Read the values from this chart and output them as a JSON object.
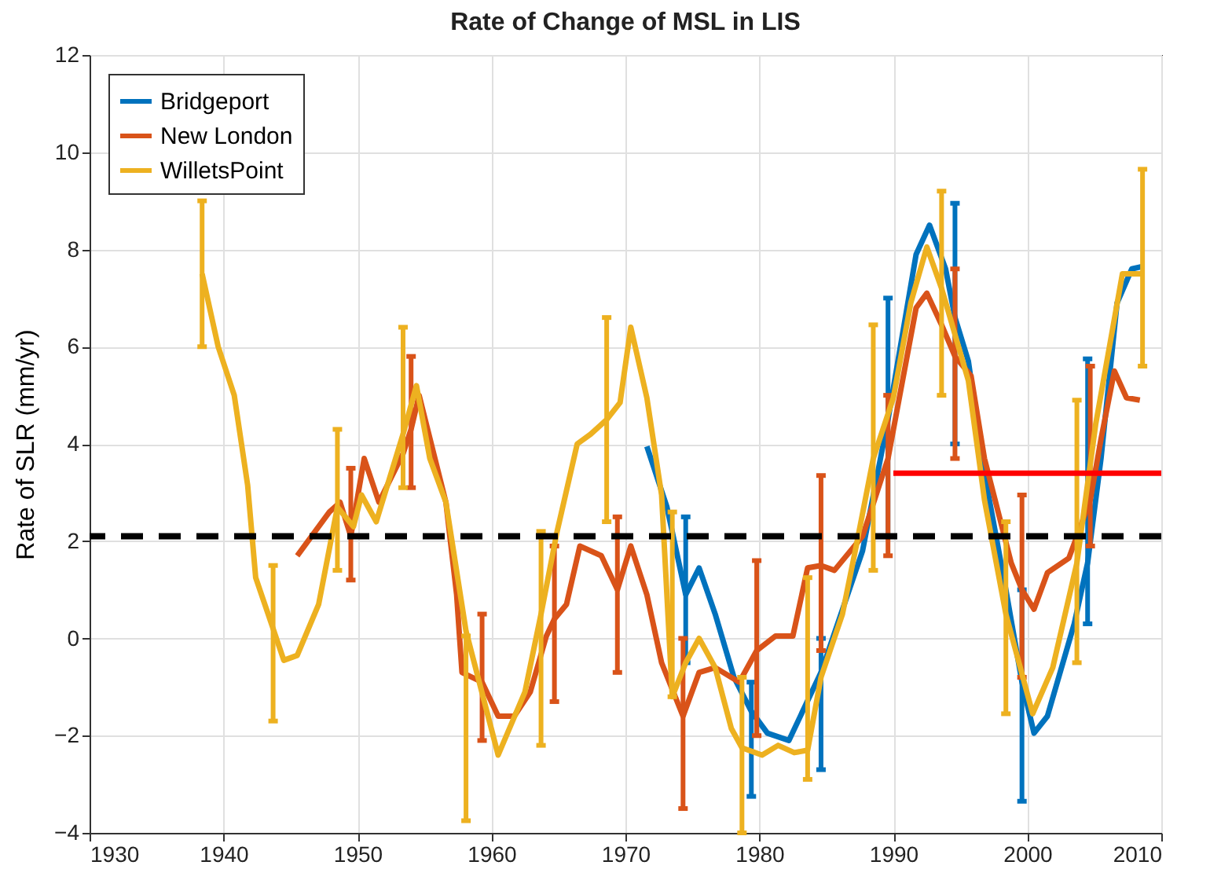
{
  "chart_data": {
    "type": "line",
    "title": "Rate of Change of MSL in LIS",
    "ylabel": "Rate of SLR (mm/yr)",
    "xlim": [
      1930,
      2010
    ],
    "xticks": [
      1930,
      1940,
      1950,
      1960,
      1970,
      1980,
      1990,
      2000,
      2010
    ],
    "ylim": [
      -4,
      12
    ],
    "yticks": [
      -4,
      -2,
      0,
      2,
      4,
      6,
      8,
      10,
      12
    ],
    "grid": true,
    "legend": "top left",
    "ref_lines": [
      {
        "axis": "y",
        "value": 2.1,
        "color": "#000000",
        "line_style": "dashed"
      }
    ],
    "series": [
      {
        "name": "Bridgeport",
        "color": "#0072bd",
        "x": [
          1971.6,
          1973.1,
          1974.5,
          1975.5,
          1976.7,
          1978.1,
          1979.4,
          1980.6,
          1982.2,
          1984.6,
          1987.7,
          1989.6,
          1991.7,
          1992.7,
          1993.9,
          1994.6,
          1995.6,
          1996.8,
          1998.4,
          1999.6,
          2000.5,
          2001.5,
          2003.5,
          2004.5,
          2005.5,
          2006.7,
          2007.8,
          2008.6
        ],
        "values": [
          3.95,
          2.7,
          0.9,
          1.45,
          0.5,
          -0.8,
          -1.5,
          -1.95,
          -2.1,
          -0.7,
          1.8,
          4.5,
          7.9,
          8.5,
          7.6,
          6.6,
          5.7,
          3.4,
          1.0,
          -0.9,
          -1.95,
          -1.6,
          0.3,
          1.55,
          3.7,
          6.9,
          7.6,
          7.65
        ],
        "errors": [
          null,
          null,
          [
            -0.5,
            2.5
          ],
          null,
          null,
          null,
          [
            -3.25,
            -0.9
          ],
          null,
          null,
          [
            -2.7,
            0.0
          ],
          null,
          [
            2.1,
            7.0
          ],
          null,
          null,
          null,
          [
            4.0,
            8.95
          ],
          null,
          null,
          null,
          [
            -3.35,
            1.0
          ],
          null,
          null,
          null,
          [
            0.3,
            5.75
          ],
          null,
          null,
          null,
          null
        ]
      },
      {
        "name": "New London",
        "color": "#d95319",
        "x": [
          1945.5,
          1947.9,
          1948.7,
          1949.5,
          1950.5,
          1951.6,
          1953.4,
          1954.0,
          1954.6,
          1956.6,
          1957.4,
          1957.8,
          1959.3,
          1960.5,
          1961.7,
          1962.9,
          1964.1,
          1964.7,
          1965.6,
          1966.6,
          1968.2,
          1969.4,
          1970.4,
          1971.6,
          1972.7,
          1974.3,
          1975.5,
          1976.7,
          1978.5,
          1979.8,
          1981.2,
          1982.5,
          1983.6,
          1984.6,
          1985.6,
          1987.7,
          1989.6,
          1991.7,
          1992.5,
          1993.6,
          1994.6,
          1995.8,
          1996.8,
          1998.8,
          1999.6,
          2000.5,
          2001.5,
          2003.1,
          2004.7,
          2005.5,
          2006.5,
          2007.4,
          2008.4
        ],
        "values": [
          1.7,
          2.6,
          2.8,
          2.1,
          3.7,
          2.8,
          3.8,
          4.3,
          5.0,
          2.8,
          0.9,
          -0.7,
          -0.9,
          -1.6,
          -1.6,
          -1.1,
          0.05,
          0.4,
          0.7,
          1.9,
          1.7,
          1.0,
          1.9,
          0.9,
          -0.5,
          -1.6,
          -0.7,
          -0.6,
          -0.9,
          -0.25,
          0.05,
          0.05,
          1.45,
          1.5,
          1.4,
          2.1,
          3.7,
          6.8,
          7.1,
          6.45,
          5.8,
          5.4,
          3.7,
          1.55,
          1.0,
          0.6,
          1.35,
          1.65,
          2.85,
          4.1,
          5.5,
          4.95,
          4.9
        ],
        "errors": [
          null,
          null,
          null,
          [
            1.2,
            3.5
          ],
          null,
          null,
          null,
          [
            3.1,
            5.8
          ],
          null,
          null,
          null,
          null,
          [
            -2.1,
            0.5
          ],
          null,
          null,
          null,
          null,
          [
            -1.3,
            1.9
          ],
          null,
          null,
          null,
          [
            -0.7,
            2.5
          ],
          null,
          null,
          null,
          [
            -3.5,
            0.0
          ],
          null,
          null,
          null,
          [
            -2.0,
            1.6
          ],
          null,
          null,
          null,
          [
            -0.25,
            3.35
          ],
          null,
          null,
          [
            1.7,
            5.0
          ],
          null,
          null,
          null,
          [
            3.7,
            7.6
          ],
          null,
          null,
          null,
          [
            -0.8,
            2.95
          ],
          null,
          null,
          null,
          [
            1.9,
            5.6
          ],
          null,
          null,
          null,
          null
        ]
      },
      {
        "name": "WilletsPoint",
        "color": "#edb120",
        "x": [
          1938.4,
          1939.6,
          1940.8,
          1941.8,
          1942.4,
          1943.7,
          1944.5,
          1945.5,
          1947.1,
          1948.5,
          1949.7,
          1950.3,
          1951.4,
          1953.4,
          1954.4,
          1955.4,
          1956.6,
          1958.1,
          1960.5,
          1962.5,
          1963.7,
          1964.9,
          1966.4,
          1967.4,
          1968.6,
          1969.6,
          1970.4,
          1971.6,
          1972.7,
          1973.5,
          1974.5,
          1975.5,
          1976.7,
          1977.9,
          1978.7,
          1980.2,
          1981.4,
          1982.6,
          1983.6,
          1984.6,
          1986.2,
          1987.3,
          1988.5,
          1990.0,
          1991.3,
          1992.5,
          1993.6,
          1995.6,
          1996.8,
          1998.4,
          2000.4,
          2001.9,
          2003.7,
          2005.1,
          2007.1,
          2008.6
        ],
        "values": [
          7.5,
          6.0,
          5.0,
          3.15,
          1.25,
          0.2,
          -0.45,
          -0.35,
          0.7,
          2.7,
          2.3,
          2.95,
          2.4,
          4.2,
          5.2,
          3.7,
          2.8,
          0.15,
          -2.4,
          -1.1,
          0.5,
          2.2,
          4.0,
          4.2,
          4.5,
          4.85,
          6.4,
          4.95,
          2.95,
          -1.2,
          -0.5,
          0.0,
          -0.6,
          -1.85,
          -2.25,
          -2.4,
          -2.2,
          -2.35,
          -2.3,
          -0.8,
          0.5,
          2.0,
          3.7,
          4.95,
          6.9,
          8.05,
          7.2,
          5.3,
          2.85,
          0.5,
          -1.55,
          -0.6,
          1.55,
          4.4,
          7.5,
          7.5
        ],
        "errors": [
          [
            6.0,
            9.0
          ],
          null,
          null,
          null,
          null,
          [
            -1.7,
            1.5
          ],
          null,
          null,
          null,
          [
            1.4,
            4.3
          ],
          null,
          null,
          null,
          [
            3.1,
            6.4
          ],
          null,
          null,
          null,
          [
            -3.75,
            0.05
          ],
          null,
          null,
          [
            -2.2,
            2.2
          ],
          null,
          null,
          null,
          [
            2.4,
            6.6
          ],
          null,
          null,
          null,
          null,
          [
            -1.2,
            2.6
          ],
          null,
          null,
          null,
          null,
          [
            -4.0,
            -0.8
          ],
          null,
          null,
          null,
          [
            -2.9,
            1.25
          ],
          null,
          null,
          null,
          [
            1.4,
            6.45
          ],
          null,
          null,
          null,
          [
            5.0,
            9.2
          ],
          null,
          null,
          [
            -1.55,
            2.4
          ],
          null,
          null,
          [
            -0.5,
            4.9
          ],
          null,
          null,
          [
            5.6,
            9.65
          ]
        ]
      },
      {
        "type": "line",
        "color": "#ff0000",
        "x": [
          1990,
          2010
        ],
        "values": [
          3.4,
          3.4
        ]
      }
    ]
  }
}
